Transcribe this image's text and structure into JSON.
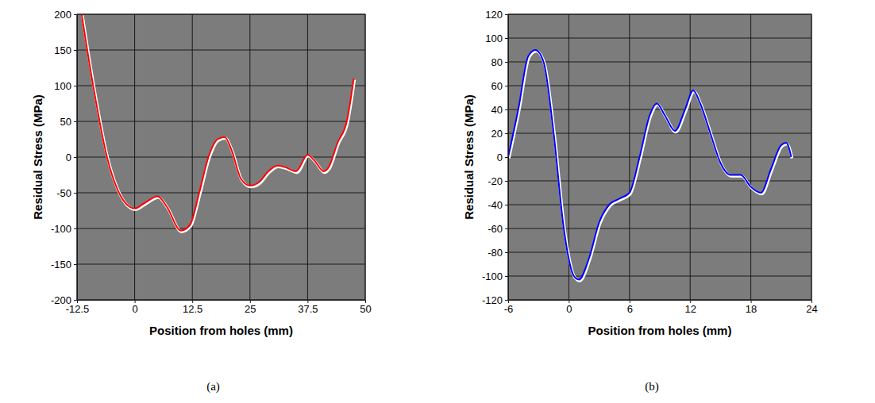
{
  "chart_data": [
    {
      "type": "line",
      "title": "(a)",
      "x_label": "Position from holes (mm)",
      "y_label": "Residual Stress (MPa)",
      "x": [
        -11.5,
        -9,
        -6,
        -3,
        -1,
        0,
        2,
        5,
        7,
        10,
        12,
        14,
        16,
        18,
        19.5,
        21,
        23,
        25,
        27,
        29,
        31,
        33,
        35,
        37.5,
        39,
        41,
        42,
        44,
        46,
        47.5
      ],
      "series": [
        {
          "color": "#ff0000",
          "values": [
            200,
            100,
            0,
            -55,
            -70,
            -72,
            -65,
            -55,
            -70,
            -103,
            -95,
            -50,
            0,
            25,
            28,
            10,
            -30,
            -40,
            -35,
            -20,
            -12,
            -15,
            -20,
            3,
            -5,
            -20,
            -15,
            20,
            50,
            110
          ]
        }
      ],
      "xlim": [
        -12.5,
        50
      ],
      "ylim": [
        -200,
        200
      ],
      "xticks": [
        -12.5,
        0,
        12.5,
        25,
        37.5,
        50
      ],
      "yticks": [
        -200,
        -150,
        -100,
        -50,
        0,
        50,
        100,
        150,
        200
      ],
      "grid": true
    },
    {
      "type": "line",
      "title": "(b)",
      "x_label": "Position from holes (mm)",
      "y_label": "Residual Stress (MPa)",
      "x": [
        -6,
        -5,
        -4,
        -3.3,
        -2.5,
        -1.5,
        -0.5,
        0.5,
        1,
        2,
        3,
        4,
        5,
        6,
        7,
        8,
        8.7,
        9.5,
        10.5,
        11.5,
        12.3,
        13,
        14,
        15,
        16,
        17,
        18,
        19,
        20,
        21,
        21.5,
        22
      ],
      "series": [
        {
          "color": "#0000ff",
          "values": [
            0,
            40,
            85,
            90,
            80,
            20,
            -60,
            -100,
            -103,
            -85,
            -55,
            -40,
            -35,
            -30,
            0,
            35,
            45,
            35,
            22,
            40,
            56,
            45,
            20,
            -5,
            -15,
            -15,
            -25,
            -30,
            -10,
            10,
            12,
            0
          ]
        }
      ],
      "xlim": [
        -6,
        24
      ],
      "ylim": [
        -120,
        120
      ],
      "xticks": [
        -6,
        0,
        6,
        12,
        18,
        24
      ],
      "yticks": [
        -120,
        -100,
        -80,
        -60,
        -40,
        -20,
        0,
        20,
        40,
        60,
        80,
        100,
        120
      ],
      "grid": true
    }
  ]
}
